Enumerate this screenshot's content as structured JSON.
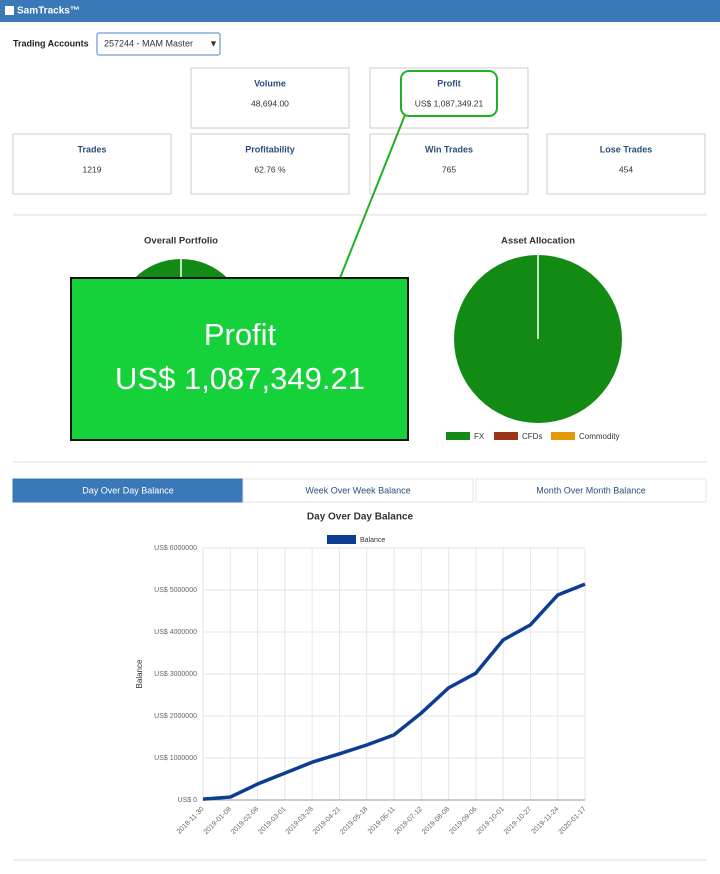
{
  "header": {
    "title": "SamTracks™"
  },
  "account": {
    "label": "Trading Accounts",
    "selected": "257244 - MAM Master"
  },
  "stats": [
    {
      "label": "Volume",
      "value": "48,694.00"
    },
    {
      "label": "Profit",
      "value": "US$ 1,087,349.21"
    },
    {
      "label": "Trades",
      "value": "1219"
    },
    {
      "label": "Profitability",
      "value": "62.76 %"
    },
    {
      "label": "Win Trades",
      "value": "765"
    },
    {
      "label": "Lose Trades",
      "value": "454"
    }
  ],
  "callout": {
    "title": "Profit",
    "value": "US$ 1,087,349.21"
  },
  "overall_portfolio": {
    "title": "Overall Portfolio"
  },
  "asset_allocation": {
    "type": "pie",
    "title": "Asset Allocation",
    "categories": [
      "FX",
      "CFDs",
      "Commodity"
    ],
    "values": [
      100,
      0,
      0
    ],
    "colors": [
      "#138a13",
      "#9b3515",
      "#e39a08"
    ]
  },
  "tabs": [
    "Day Over Day Balance",
    "Week Over Week Balance",
    "Month Over Month Balance"
  ],
  "balance_chart": {
    "type": "line",
    "title": "Day Over Day Balance",
    "ylabel": "Balance",
    "categories": [
      "2018-11-30",
      "2019-01-08",
      "2019-02-08",
      "2019-03-01",
      "2019-03-28",
      "2019-04-21",
      "2019-05-18",
      "2019-06-11",
      "2019-07-12",
      "2019-08-08",
      "2019-09-06",
      "2019-10-01",
      "2019-10-27",
      "2019-11-24",
      "2020-01-17"
    ],
    "series": [
      {
        "name": "Balance",
        "color": "#0b3d91",
        "values": [
          20000,
          70000,
          380000,
          640000,
          900000,
          1100000,
          1310000,
          1550000,
          2070000,
          2670000,
          3020000,
          3810000,
          4170000,
          4880000,
          5140000
        ]
      }
    ],
    "ylim": [
      0,
      6000000
    ],
    "yticks": [
      {
        "value": 0,
        "label": "US$ 0"
      },
      {
        "value": 1000000,
        "label": "US$ 1000000"
      },
      {
        "value": 2000000,
        "label": "US$ 2000000"
      },
      {
        "value": 3000000,
        "label": "US$ 3000000"
      },
      {
        "value": 4000000,
        "label": "US$ 4000000"
      },
      {
        "value": 5000000,
        "label": "US$ 5000000"
      },
      {
        "value": 6000000,
        "label": "US$ 6000000"
      }
    ],
    "grid": true
  }
}
